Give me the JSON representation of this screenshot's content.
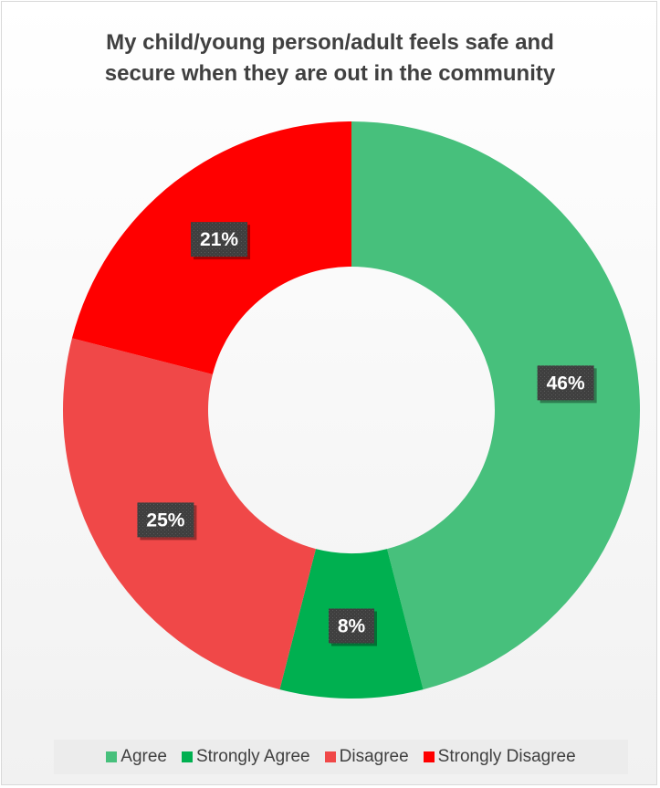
{
  "chart_data": {
    "type": "pie",
    "style": "donut",
    "title_lines": [
      "My child/young person/adult feels safe and",
      "secure when they are out in the community"
    ],
    "slices": [
      {
        "name": "Agree",
        "value": 46,
        "label": "46%",
        "color": "#47c07c"
      },
      {
        "name": "Strongly Agree",
        "value": 8,
        "label": "8%",
        "color": "#00b050"
      },
      {
        "name": "Disagree",
        "value": 25,
        "label": "25%",
        "color": "#f04848"
      },
      {
        "name": "Strongly Disagree",
        "value": 21,
        "label": "21%",
        "color": "#ff0000"
      }
    ],
    "legend": {
      "position": "bottom"
    }
  }
}
